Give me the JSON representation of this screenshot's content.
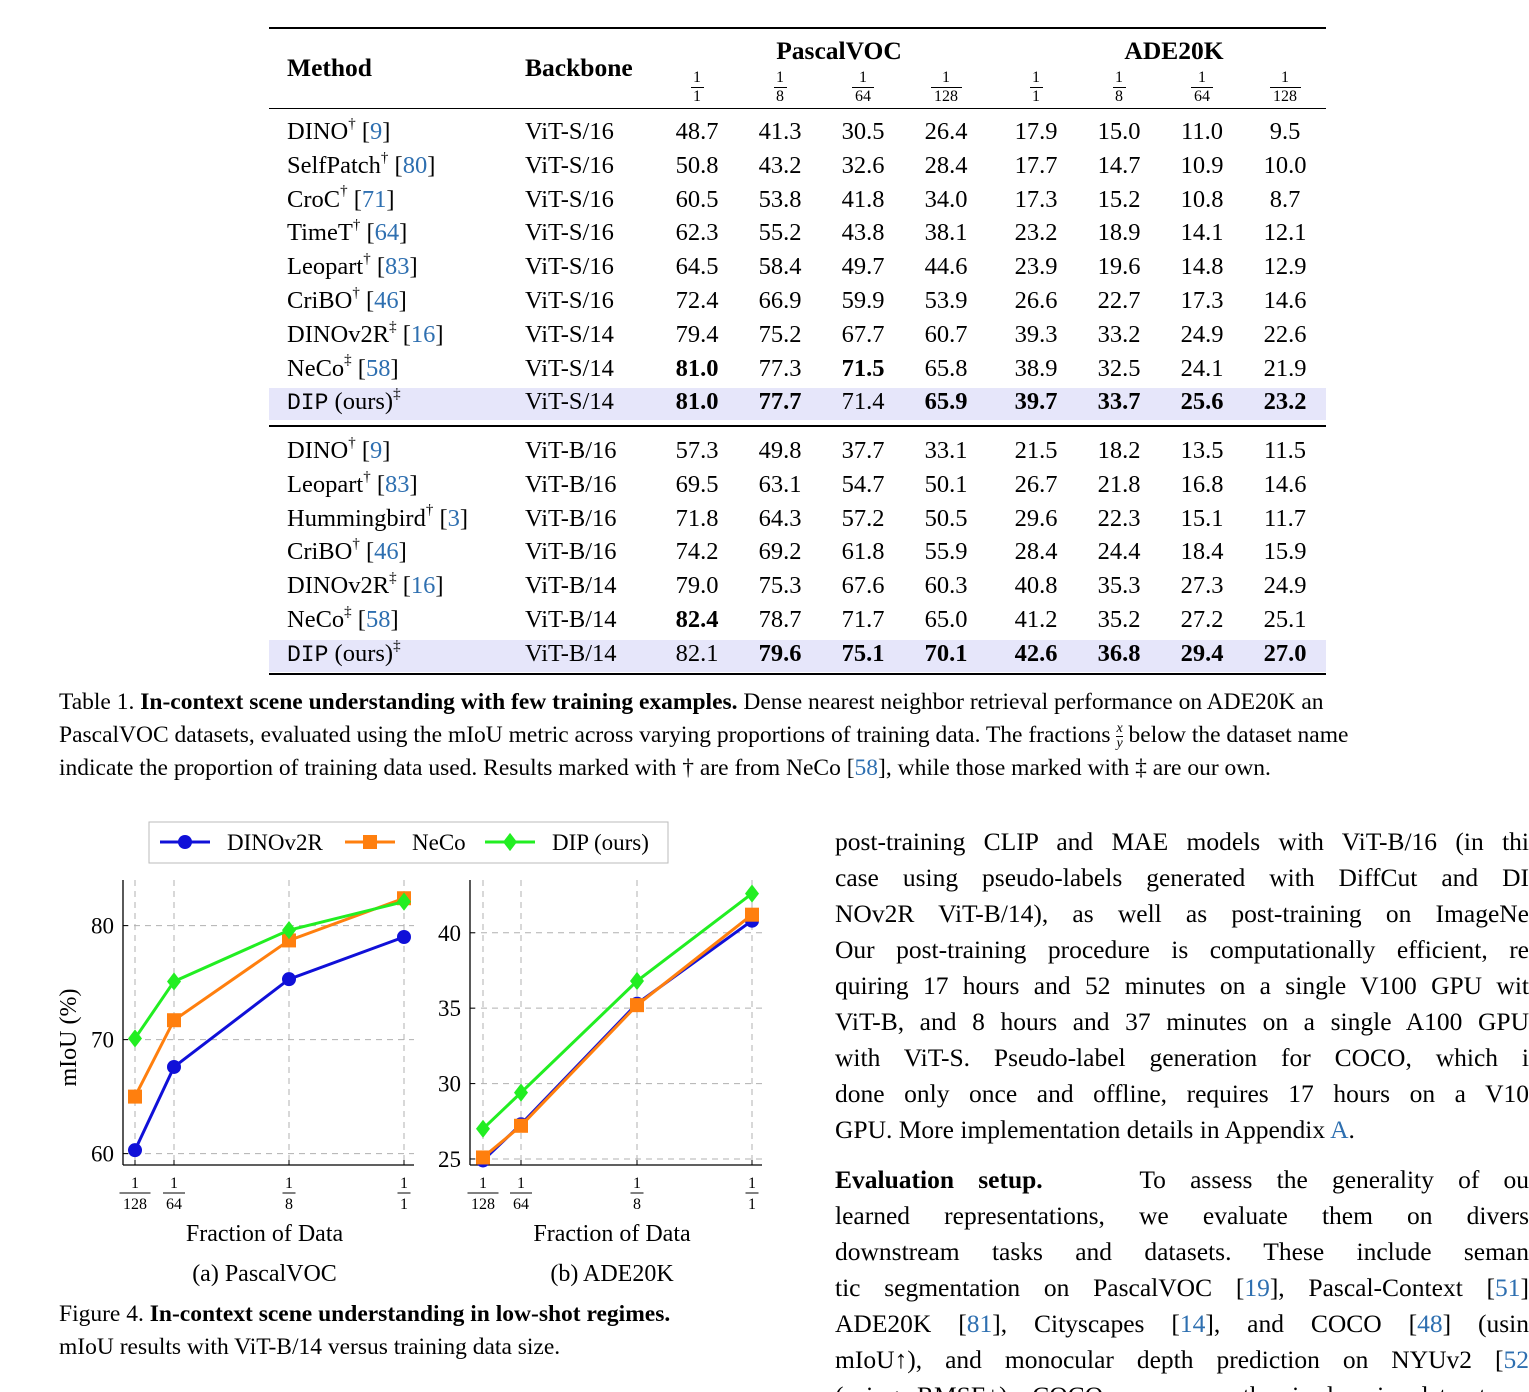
{
  "table": {
    "headers": {
      "method": "Method",
      "backbone": "Backbone",
      "dataset1": "PascalVOC",
      "dataset2": "ADE20K",
      "fractions": [
        {
          "n": "1",
          "d": "1"
        },
        {
          "n": "1",
          "d": "8"
        },
        {
          "n": "1",
          "d": "64"
        },
        {
          "n": "1",
          "d": "128"
        },
        {
          "n": "1",
          "d": "1"
        },
        {
          "n": "1",
          "d": "8"
        },
        {
          "n": "1",
          "d": "64"
        },
        {
          "n": "1",
          "d": "128"
        }
      ]
    },
    "groups": [
      {
        "rows": [
          {
            "method": "DINO",
            "mark": "†",
            "ref": "9",
            "backbone": "ViT-S/16",
            "values": [
              "48.7",
              "41.3",
              "30.5",
              "26.4",
              "17.9",
              "15.0",
              "11.0",
              "9.5"
            ],
            "bold": []
          },
          {
            "method": "SelfPatch",
            "mark": "†",
            "ref": "80",
            "backbone": "ViT-S/16",
            "values": [
              "50.8",
              "43.2",
              "32.6",
              "28.4",
              "17.7",
              "14.7",
              "10.9",
              "10.0"
            ],
            "bold": []
          },
          {
            "method": "CroC",
            "mark": "†",
            "ref": "71",
            "backbone": "ViT-S/16",
            "values": [
              "60.5",
              "53.8",
              "41.8",
              "34.0",
              "17.3",
              "15.2",
              "10.8",
              "8.7"
            ],
            "bold": []
          },
          {
            "method": "TimeT",
            "mark": "†",
            "ref": "64",
            "backbone": "ViT-S/16",
            "values": [
              "62.3",
              "55.2",
              "43.8",
              "38.1",
              "23.2",
              "18.9",
              "14.1",
              "12.1"
            ],
            "bold": []
          },
          {
            "method": "Leopart",
            "mark": "†",
            "ref": "83",
            "backbone": "ViT-S/16",
            "values": [
              "64.5",
              "58.4",
              "49.7",
              "44.6",
              "23.9",
              "19.6",
              "14.8",
              "12.9"
            ],
            "bold": []
          },
          {
            "method": "CriBO",
            "mark": "†",
            "ref": "46",
            "backbone": "ViT-S/16",
            "values": [
              "72.4",
              "66.9",
              "59.9",
              "53.9",
              "26.6",
              "22.7",
              "17.3",
              "14.6"
            ],
            "bold": []
          },
          {
            "method": "DINOv2R",
            "mark": "‡",
            "ref": "16",
            "backbone": "ViT-S/14",
            "values": [
              "79.4",
              "75.2",
              "67.7",
              "60.7",
              "39.3",
              "33.2",
              "24.9",
              "22.6"
            ],
            "bold": []
          },
          {
            "method": "NeCo",
            "mark": "‡",
            "ref": "58",
            "backbone": "ViT-S/14",
            "values": [
              "81.0",
              "77.3",
              "71.5",
              "65.8",
              "38.9",
              "32.5",
              "24.1",
              "21.9"
            ],
            "bold": [
              0,
              2
            ]
          },
          {
            "method": "DIP",
            "suffix": "(ours)",
            "mark": "‡",
            "ref": "",
            "ours": true,
            "backbone": "ViT-S/14",
            "values": [
              "81.0",
              "77.7",
              "71.4",
              "65.9",
              "39.7",
              "33.7",
              "25.6",
              "23.2"
            ],
            "bold": [
              0,
              1,
              3,
              4,
              5,
              6,
              7
            ]
          }
        ]
      },
      {
        "rows": [
          {
            "method": "DINO",
            "mark": "†",
            "ref": "9",
            "backbone": "ViT-B/16",
            "values": [
              "57.3",
              "49.8",
              "37.7",
              "33.1",
              "21.5",
              "18.2",
              "13.5",
              "11.5"
            ],
            "bold": []
          },
          {
            "method": "Leopart",
            "mark": "†",
            "ref": "83",
            "backbone": "ViT-B/16",
            "values": [
              "69.5",
              "63.1",
              "54.7",
              "50.1",
              "26.7",
              "21.8",
              "16.8",
              "14.6"
            ],
            "bold": []
          },
          {
            "method": "Hummingbird",
            "mark": "†",
            "ref": "3",
            "backbone": "ViT-B/16",
            "values": [
              "71.8",
              "64.3",
              "57.2",
              "50.5",
              "29.6",
              "22.3",
              "15.1",
              "11.7"
            ],
            "bold": []
          },
          {
            "method": "CriBO",
            "mark": "†",
            "ref": "46",
            "backbone": "ViT-B/16",
            "values": [
              "74.2",
              "69.2",
              "61.8",
              "55.9",
              "28.4",
              "24.4",
              "18.4",
              "15.9"
            ],
            "bold": []
          },
          {
            "method": "DINOv2R",
            "mark": "‡",
            "ref": "16",
            "backbone": "ViT-B/14",
            "values": [
              "79.0",
              "75.3",
              "67.6",
              "60.3",
              "40.8",
              "35.3",
              "27.3",
              "24.9"
            ],
            "bold": []
          },
          {
            "method": "NeCo",
            "mark": "‡",
            "ref": "58",
            "backbone": "ViT-B/14",
            "values": [
              "82.4",
              "78.7",
              "71.7",
              "65.0",
              "41.2",
              "35.2",
              "27.2",
              "25.1"
            ],
            "bold": [
              0
            ]
          },
          {
            "method": "DIP",
            "suffix": "(ours)",
            "mark": "‡",
            "ref": "",
            "ours": true,
            "backbone": "ViT-B/14",
            "values": [
              "82.1",
              "79.6",
              "75.1",
              "70.1",
              "42.6",
              "36.8",
              "29.4",
              "27.0"
            ],
            "bold": [
              1,
              2,
              3,
              4,
              5,
              6,
              7
            ]
          }
        ]
      }
    ]
  },
  "table_caption": {
    "label": "Table 1.",
    "title": "In-context scene understanding with few training examples.",
    "line1_rest": " Dense nearest neighbor retrieval performance on ADE20K an",
    "line2_a": "PascalVOC datasets, evaluated using the mIoU metric across varying proportions of training data. The fractions ",
    "frac_n": "x",
    "frac_d": "y",
    "line2_b": " below the dataset name",
    "line3_a": "indicate the proportion of training data used. Results marked with † are from NeCo [",
    "line3_ref": "58",
    "line3_b": "], while those marked with ‡ are our own."
  },
  "legend": {
    "items": [
      {
        "name": "DINOv2R",
        "color": "#1010d8",
        "marker": "circle"
      },
      {
        "name": "NeCo",
        "color": "#ff7f0e",
        "marker": "square"
      },
      {
        "name": "DIP (ours)",
        "color": "#22ee22",
        "marker": "diamond"
      }
    ]
  },
  "chart_data": [
    {
      "type": "line",
      "subcaption": "(a) PascalVOC",
      "xlabel": "Fraction of Data",
      "ylabel": "mIoU (%)",
      "x_ticks": [
        {
          "n": "1",
          "d": "128"
        },
        {
          "n": "1",
          "d": "64"
        },
        {
          "n": "1",
          "d": "8"
        },
        {
          "n": "1",
          "d": "1"
        }
      ],
      "y_ticks": [
        "60",
        "70",
        "80"
      ],
      "ylim": [
        59,
        84
      ],
      "grid": true,
      "series": [
        {
          "name": "DINOv2R",
          "values": [
            60.3,
            67.6,
            75.3,
            79.0
          ]
        },
        {
          "name": "NeCo",
          "values": [
            65.0,
            71.7,
            78.7,
            82.4
          ]
        },
        {
          "name": "DIP (ours)",
          "values": [
            70.1,
            75.1,
            79.6,
            82.1
          ]
        }
      ]
    },
    {
      "type": "line",
      "subcaption": "(b) ADE20K",
      "xlabel": "Fraction of Data",
      "ylabel": "",
      "x_ticks": [
        {
          "n": "1",
          "d": "128"
        },
        {
          "n": "1",
          "d": "64"
        },
        {
          "n": "1",
          "d": "8"
        },
        {
          "n": "1",
          "d": "1"
        }
      ],
      "y_ticks": [
        "25",
        "30",
        "35",
        "40"
      ],
      "ylim": [
        24.6,
        43.5
      ],
      "grid": true,
      "series": [
        {
          "name": "DINOv2R",
          "values": [
            24.9,
            27.3,
            35.3,
            40.8
          ]
        },
        {
          "name": "NeCo",
          "values": [
            25.1,
            27.2,
            35.2,
            41.2
          ]
        },
        {
          "name": "DIP (ours)",
          "values": [
            27.0,
            29.4,
            36.8,
            42.6
          ]
        }
      ]
    }
  ],
  "figure_caption": {
    "label": "Figure 4.",
    "title": "In-context scene understanding in low-shot regimes.",
    "line2": "mIoU results with ViT-B/14 versus training data size."
  },
  "right_column": {
    "p1": [
      "post-training CLIP and MAE models with ViT-B/16 (in thi",
      "case using pseudo-labels generated with DiffCut and DI",
      "NOv2R ViT-B/14), as well as post-training on ImageNe",
      "Our post-training procedure is computationally efficient, re",
      "quiring 17 hours and 52 minutes on a single V100 GPU wit",
      "ViT-B, and 8 hours and 37 minutes on a single A100 GPU",
      "with ViT-S. Pseudo-label generation for COCO, which i",
      "done only once and offline, requires 17 hours on a V10",
      "GPU. More implementation details in Appendix "
    ],
    "p1_link": "A",
    "p1_end": ".",
    "p2_heading": "Evaluation setup.",
    "p2_line1": "To assess the generality of ou",
    "p2_line2": "learned representations, we evaluate them on divers",
    "p2_line3": "downstream tasks and datasets.  These include seman",
    "p2_line4_a": "tic segmentation on PascalVOC [",
    "p2_line4_r1": "19",
    "p2_line4_b": "], Pascal-Context [",
    "p2_line4_r2": "51",
    "p2_line4_c": "]",
    "p2_line5_a": "ADE20K [",
    "p2_line5_r1": "81",
    "p2_line5_b": "], Cityscapes [",
    "p2_line5_r2": "14",
    "p2_line5_c": "], and COCO [",
    "p2_line5_r3": "48",
    "p2_line5_d": "] (usin",
    "p2_line6_a": "mIoU↑), and monocular depth prediction on NYUv2 [",
    "p2_line6_r": "52",
    "p2_line7": "(using RMSE↓). COCO serves as the in-domain dataset, w"
  }
}
